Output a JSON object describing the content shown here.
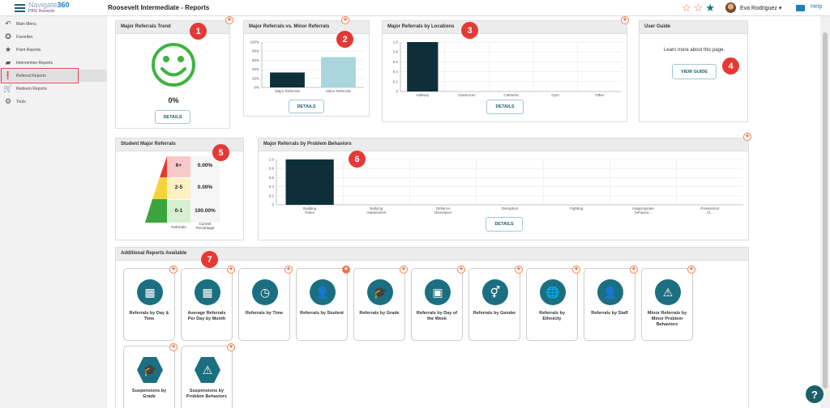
{
  "header": {
    "logo_main": "Navigate",
    "logo_num": "360",
    "logo_sub": "PBIS Rewards",
    "page_title": "Roosevelt Intermediate - Reports",
    "user_name": "Eva Rodriguez",
    "help": "Help"
  },
  "sidebar": {
    "items": [
      {
        "label": "Main Menu",
        "icon": "back-arrow-icon"
      },
      {
        "label": "Favorites",
        "icon": "star-icon"
      },
      {
        "label": "Point Reports",
        "icon": "star-icon"
      },
      {
        "label": "Intervention Reports",
        "icon": "chat-icon"
      },
      {
        "label": "Referral Reports",
        "icon": "alert-icon"
      },
      {
        "label": "Redeem Reports",
        "icon": "cart-icon"
      },
      {
        "label": "Tools",
        "icon": "gear-icon"
      }
    ]
  },
  "cards": {
    "trend": {
      "title": "Major Referrals Trend",
      "value": "0%",
      "details": "DETAILS",
      "badge": "1"
    },
    "major_minor": {
      "title": "Major Referrals vs. Minor Referrals",
      "details": "DETAILS",
      "badge": "2"
    },
    "locations": {
      "title": "Major Referrals by Locations",
      "details": "DETAILS",
      "badge": "3"
    },
    "guide": {
      "title": "User Guide",
      "text": "Learn more about this page.",
      "button": "VIEW GUIDE",
      "badge": "4"
    },
    "student": {
      "title": "Student Major Referrals",
      "badge": "5",
      "rows": [
        {
          "range": "6+",
          "pct": "0.00%"
        },
        {
          "range": "2-5",
          "pct": "0.00%"
        },
        {
          "range": "0-1",
          "pct": "100.00%"
        }
      ],
      "col1": "Referrals",
      "col2": "Current Percentage"
    },
    "behaviors": {
      "title": "Major Referrals by Problem Behaviors",
      "details": "DETAILS",
      "badge": "6"
    },
    "additional": {
      "title": "Additional Reports Available",
      "badge": "7"
    }
  },
  "chart_data": [
    {
      "type": "bar",
      "categories": [
        "Major Referrals",
        "Minor Referrals"
      ],
      "values": [
        33,
        67
      ],
      "ylim": [
        0,
        100
      ],
      "yticks": [
        "0%",
        "20%",
        "40%",
        "60%",
        "80%",
        "100%"
      ]
    },
    {
      "type": "bar",
      "categories": [
        "Hallway",
        "Classroom",
        "Cafeteria",
        "Gym",
        "Other"
      ],
      "values": [
        1,
        0,
        0,
        0,
        0
      ],
      "ylim": [
        0,
        1.0
      ],
      "yticks": [
        "0",
        "0.2",
        "0.4",
        "0.6",
        "0.8",
        "1.0"
      ]
    },
    {
      "type": "bar",
      "categories": [
        "Building Rules",
        "Bullying Harassment",
        "Defiance Disrespect",
        "Disruption",
        "Fighting",
        "Inappropriate behavior...",
        "Possession of..."
      ],
      "values": [
        1,
        0,
        0,
        0,
        0,
        0,
        0
      ],
      "ylim": [
        0,
        1.0
      ],
      "yticks": [
        "0",
        "0.2",
        "0.4",
        "0.6",
        "0.8",
        "1.0"
      ]
    }
  ],
  "tiles": [
    {
      "label": "Referrals by Day & Time",
      "icon": "calendar-clock-icon"
    },
    {
      "label": "Average Referrals Per Day by Month",
      "icon": "calendar-grid-icon"
    },
    {
      "label": "Referrals by Time",
      "icon": "clock-icon"
    },
    {
      "label": "Referrals by Student",
      "icon": "person-icon"
    },
    {
      "label": "Referrals by Grade",
      "icon": "graduation-cap-icon"
    },
    {
      "label": "Referrals by Day of the Week",
      "icon": "calendar-icon"
    },
    {
      "label": "Referrals by Gender",
      "icon": "gender-icon"
    },
    {
      "label": "Referrals by Ethnicity",
      "icon": "globe-icon"
    },
    {
      "label": "Referrals by Staff",
      "icon": "staff-icon"
    },
    {
      "label": "Minor Referrals by Minor Problem Behaviors",
      "icon": "warning-icon"
    },
    {
      "label": "Suspensions by Grade",
      "icon": "graduation-cap-icon"
    },
    {
      "label": "Suspensions by Problem Behaviors",
      "icon": "warning-icon"
    }
  ],
  "colors": {
    "accent": "#1b6f80",
    "bar": "#0e2f3a",
    "bar_minor": "#a9d6dc",
    "smile": "#3fb33f",
    "badge": "#e53935"
  }
}
